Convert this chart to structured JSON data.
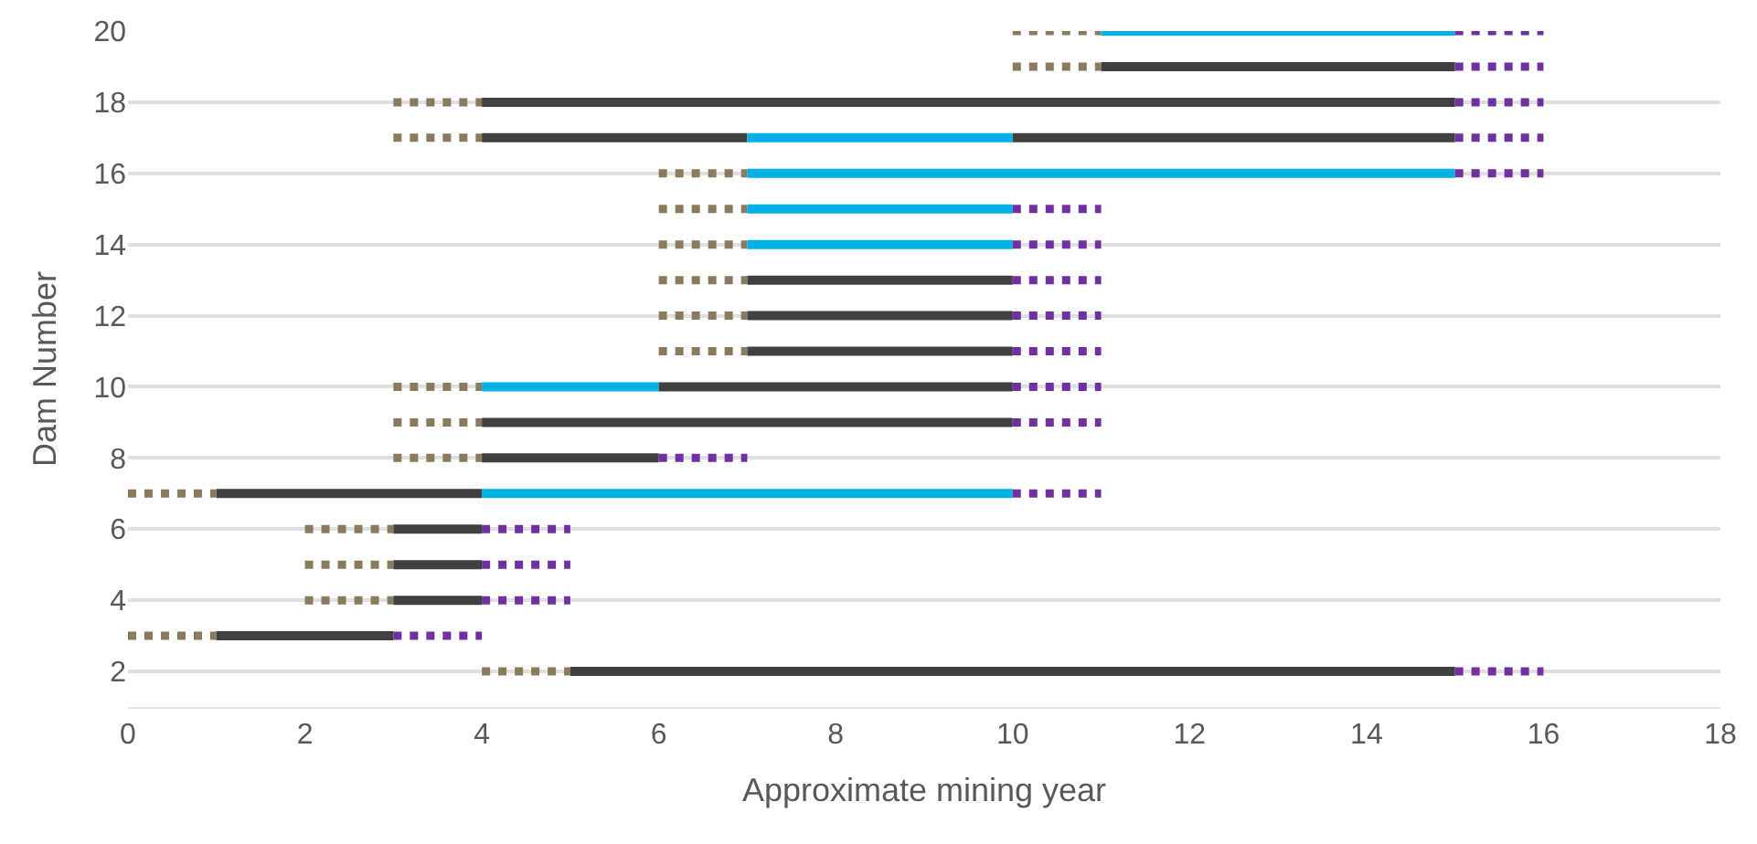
{
  "chart_data": {
    "type": "line",
    "xlabel": "Approximate mining year",
    "ylabel": "Dam Number",
    "xlim": [
      0,
      18
    ],
    "xticks": [
      0,
      2,
      4,
      6,
      8,
      10,
      12,
      14,
      16,
      18
    ],
    "ylim": [
      1,
      20
    ],
    "yticks": [
      2,
      4,
      6,
      8,
      10,
      12,
      14,
      16,
      18,
      20
    ],
    "grid": "y",
    "marker": "none",
    "series": [
      {
        "color": "#8b7b5e",
        "line_style": "dotted",
        "x": [
          10,
          11
        ],
        "values": [
          20,
          20
        ]
      },
      {
        "color": "#00b0e6",
        "line_style": "solid",
        "x": [
          11,
          15
        ],
        "values": [
          20,
          20
        ]
      },
      {
        "color": "#7030a0",
        "line_style": "dotted",
        "x": [
          15,
          16
        ],
        "values": [
          20,
          20
        ]
      },
      {
        "color": "#8b7b5e",
        "line_style": "dotted",
        "x": [
          10,
          11
        ],
        "values": [
          19,
          19
        ]
      },
      {
        "color": "#404040",
        "line_style": "solid",
        "x": [
          11,
          15
        ],
        "values": [
          19,
          19
        ]
      },
      {
        "color": "#7030a0",
        "line_style": "dotted",
        "x": [
          15,
          16
        ],
        "values": [
          19,
          19
        ]
      },
      {
        "color": "#8b7b5e",
        "line_style": "dotted",
        "x": [
          3,
          4
        ],
        "values": [
          18,
          18
        ]
      },
      {
        "color": "#404040",
        "line_style": "solid",
        "x": [
          4,
          15
        ],
        "values": [
          18,
          18
        ]
      },
      {
        "color": "#7030a0",
        "line_style": "dotted",
        "x": [
          15,
          16
        ],
        "values": [
          18,
          18
        ]
      },
      {
        "color": "#8b7b5e",
        "line_style": "dotted",
        "x": [
          3,
          4
        ],
        "values": [
          17,
          17
        ]
      },
      {
        "color": "#404040",
        "line_style": "solid",
        "x": [
          4,
          7
        ],
        "values": [
          17,
          17
        ]
      },
      {
        "color": "#00b0e6",
        "line_style": "solid",
        "x": [
          7,
          10
        ],
        "values": [
          17,
          17
        ]
      },
      {
        "color": "#404040",
        "line_style": "solid",
        "x": [
          10,
          15
        ],
        "values": [
          17,
          17
        ]
      },
      {
        "color": "#7030a0",
        "line_style": "dotted",
        "x": [
          15,
          16
        ],
        "values": [
          17,
          17
        ]
      },
      {
        "color": "#8b7b5e",
        "line_style": "dotted",
        "x": [
          6,
          7
        ],
        "values": [
          16,
          16
        ]
      },
      {
        "color": "#00b0e6",
        "line_style": "solid",
        "x": [
          7,
          15
        ],
        "values": [
          16,
          16
        ]
      },
      {
        "color": "#7030a0",
        "line_style": "dotted",
        "x": [
          15,
          16
        ],
        "values": [
          16,
          16
        ]
      },
      {
        "color": "#8b7b5e",
        "line_style": "dotted",
        "x": [
          6,
          7
        ],
        "values": [
          15,
          15
        ]
      },
      {
        "color": "#00b0e6",
        "line_style": "solid",
        "x": [
          7,
          10
        ],
        "values": [
          15,
          15
        ]
      },
      {
        "color": "#7030a0",
        "line_style": "dotted",
        "x": [
          10,
          11
        ],
        "values": [
          15,
          15
        ]
      },
      {
        "color": "#8b7b5e",
        "line_style": "dotted",
        "x": [
          6,
          7
        ],
        "values": [
          14,
          14
        ]
      },
      {
        "color": "#00b0e6",
        "line_style": "solid",
        "x": [
          7,
          10
        ],
        "values": [
          14,
          14
        ]
      },
      {
        "color": "#7030a0",
        "line_style": "dotted",
        "x": [
          10,
          11
        ],
        "values": [
          14,
          14
        ]
      },
      {
        "color": "#8b7b5e",
        "line_style": "dotted",
        "x": [
          6,
          7
        ],
        "values": [
          13,
          13
        ]
      },
      {
        "color": "#404040",
        "line_style": "solid",
        "x": [
          7,
          10
        ],
        "values": [
          13,
          13
        ]
      },
      {
        "color": "#7030a0",
        "line_style": "dotted",
        "x": [
          10,
          11
        ],
        "values": [
          13,
          13
        ]
      },
      {
        "color": "#8b7b5e",
        "line_style": "dotted",
        "x": [
          6,
          7
        ],
        "values": [
          12,
          12
        ]
      },
      {
        "color": "#404040",
        "line_style": "solid",
        "x": [
          7,
          10
        ],
        "values": [
          12,
          12
        ]
      },
      {
        "color": "#7030a0",
        "line_style": "dotted",
        "x": [
          10,
          11
        ],
        "values": [
          12,
          12
        ]
      },
      {
        "color": "#8b7b5e",
        "line_style": "dotted",
        "x": [
          6,
          7
        ],
        "values": [
          11,
          11
        ]
      },
      {
        "color": "#404040",
        "line_style": "solid",
        "x": [
          7,
          10
        ],
        "values": [
          11,
          11
        ]
      },
      {
        "color": "#7030a0",
        "line_style": "dotted",
        "x": [
          10,
          11
        ],
        "values": [
          11,
          11
        ]
      },
      {
        "color": "#8b7b5e",
        "line_style": "dotted",
        "x": [
          3,
          4
        ],
        "values": [
          10,
          10
        ]
      },
      {
        "color": "#00b0e6",
        "line_style": "solid",
        "x": [
          4,
          6
        ],
        "values": [
          10,
          10
        ]
      },
      {
        "color": "#404040",
        "line_style": "solid",
        "x": [
          6,
          10
        ],
        "values": [
          10,
          10
        ]
      },
      {
        "color": "#7030a0",
        "line_style": "dotted",
        "x": [
          10,
          11
        ],
        "values": [
          10,
          10
        ]
      },
      {
        "color": "#8b7b5e",
        "line_style": "dotted",
        "x": [
          3,
          4
        ],
        "values": [
          9,
          9
        ]
      },
      {
        "color": "#404040",
        "line_style": "solid",
        "x": [
          4,
          10
        ],
        "values": [
          9,
          9
        ]
      },
      {
        "color": "#7030a0",
        "line_style": "dotted",
        "x": [
          10,
          11
        ],
        "values": [
          9,
          9
        ]
      },
      {
        "color": "#8b7b5e",
        "line_style": "dotted",
        "x": [
          3,
          4
        ],
        "values": [
          8,
          8
        ]
      },
      {
        "color": "#404040",
        "line_style": "solid",
        "x": [
          4,
          6
        ],
        "values": [
          8,
          8
        ]
      },
      {
        "color": "#7030a0",
        "line_style": "dotted",
        "x": [
          6,
          7
        ],
        "values": [
          8,
          8
        ]
      },
      {
        "color": "#8b7b5e",
        "line_style": "dotted",
        "x": [
          0,
          1
        ],
        "values": [
          7,
          7
        ]
      },
      {
        "color": "#404040",
        "line_style": "solid",
        "x": [
          1,
          4
        ],
        "values": [
          7,
          7
        ]
      },
      {
        "color": "#00b0e6",
        "line_style": "solid",
        "x": [
          4,
          10
        ],
        "values": [
          7,
          7
        ]
      },
      {
        "color": "#7030a0",
        "line_style": "dotted",
        "x": [
          10,
          11
        ],
        "values": [
          7,
          7
        ]
      },
      {
        "color": "#8b7b5e",
        "line_style": "dotted",
        "x": [
          2,
          3
        ],
        "values": [
          6,
          6
        ]
      },
      {
        "color": "#404040",
        "line_style": "solid",
        "x": [
          3,
          4
        ],
        "values": [
          6,
          6
        ]
      },
      {
        "color": "#7030a0",
        "line_style": "dotted",
        "x": [
          4,
          5
        ],
        "values": [
          6,
          6
        ]
      },
      {
        "color": "#8b7b5e",
        "line_style": "dotted",
        "x": [
          2,
          3
        ],
        "values": [
          5,
          5
        ]
      },
      {
        "color": "#404040",
        "line_style": "solid",
        "x": [
          3,
          4
        ],
        "values": [
          5,
          5
        ]
      },
      {
        "color": "#7030a0",
        "line_style": "dotted",
        "x": [
          4,
          5
        ],
        "values": [
          5,
          5
        ]
      },
      {
        "color": "#8b7b5e",
        "line_style": "dotted",
        "x": [
          2,
          3
        ],
        "values": [
          4,
          4
        ]
      },
      {
        "color": "#404040",
        "line_style": "solid",
        "x": [
          3,
          4
        ],
        "values": [
          4,
          4
        ]
      },
      {
        "color": "#7030a0",
        "line_style": "dotted",
        "x": [
          4,
          5
        ],
        "values": [
          4,
          4
        ]
      },
      {
        "color": "#8b7b5e",
        "line_style": "dotted",
        "x": [
          0,
          1
        ],
        "values": [
          3,
          3
        ]
      },
      {
        "color": "#404040",
        "line_style": "solid",
        "x": [
          1,
          3
        ],
        "values": [
          3,
          3
        ]
      },
      {
        "color": "#7030a0",
        "line_style": "dotted",
        "x": [
          3,
          4
        ],
        "values": [
          3,
          3
        ]
      },
      {
        "color": "#8b7b5e",
        "line_style": "dotted",
        "x": [
          4,
          5
        ],
        "values": [
          2,
          2
        ]
      },
      {
        "color": "#404040",
        "line_style": "solid",
        "x": [
          5,
          15
        ],
        "values": [
          2,
          2
        ]
      },
      {
        "color": "#7030a0",
        "line_style": "dotted",
        "x": [
          15,
          16
        ],
        "values": [
          2,
          2
        ]
      }
    ]
  }
}
